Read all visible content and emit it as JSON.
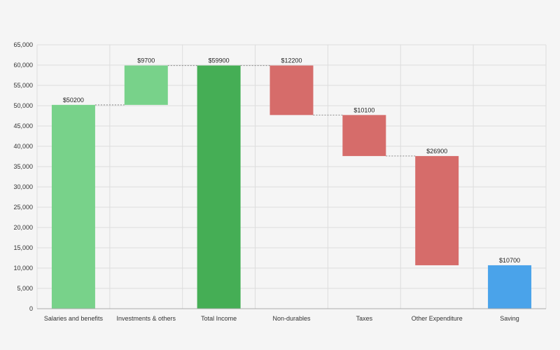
{
  "chart_data": {
    "type": "bar",
    "subtype": "waterfall",
    "title": "",
    "xlabel": "",
    "ylabel": "",
    "ylim": [
      0,
      65000
    ],
    "yticks": [
      0,
      5000,
      10000,
      15000,
      20000,
      25000,
      30000,
      35000,
      40000,
      45000,
      50000,
      55000,
      60000,
      65000
    ],
    "ytick_labels": [
      "0",
      "5,000",
      "10,000",
      "15,000",
      "20,000",
      "25,000",
      "30,000",
      "35,000",
      "40,000",
      "45,000",
      "50,000",
      "55,000",
      "60,000",
      "65,000"
    ],
    "grid": true,
    "categories": [
      "Salaries and benefits",
      "Investments & others",
      "Total Income",
      "Non-durables",
      "Taxes",
      "Other Expenditure",
      "Saving"
    ],
    "values": [
      50200,
      9700,
      59900,
      -12200,
      -10100,
      -26900,
      10700
    ],
    "bar_bottoms": [
      0,
      50200,
      0,
      47700,
      37600,
      10700,
      0
    ],
    "bar_tops": [
      50200,
      59900,
      59900,
      59900,
      47700,
      37600,
      10700
    ],
    "data_labels": [
      "$50200",
      "$9700",
      "$59900",
      "$12200",
      "$10100",
      "$26900",
      "$10700"
    ],
    "bar_kinds": [
      "increase",
      "increase",
      "total",
      "decrease",
      "decrease",
      "decrease",
      "result"
    ],
    "colors": {
      "increase": "#78d28a",
      "total": "#45ae55",
      "decrease": "#d66c6a",
      "result": "#4aa3ea",
      "grid": "#dddddd",
      "connector": "#888888"
    }
  }
}
